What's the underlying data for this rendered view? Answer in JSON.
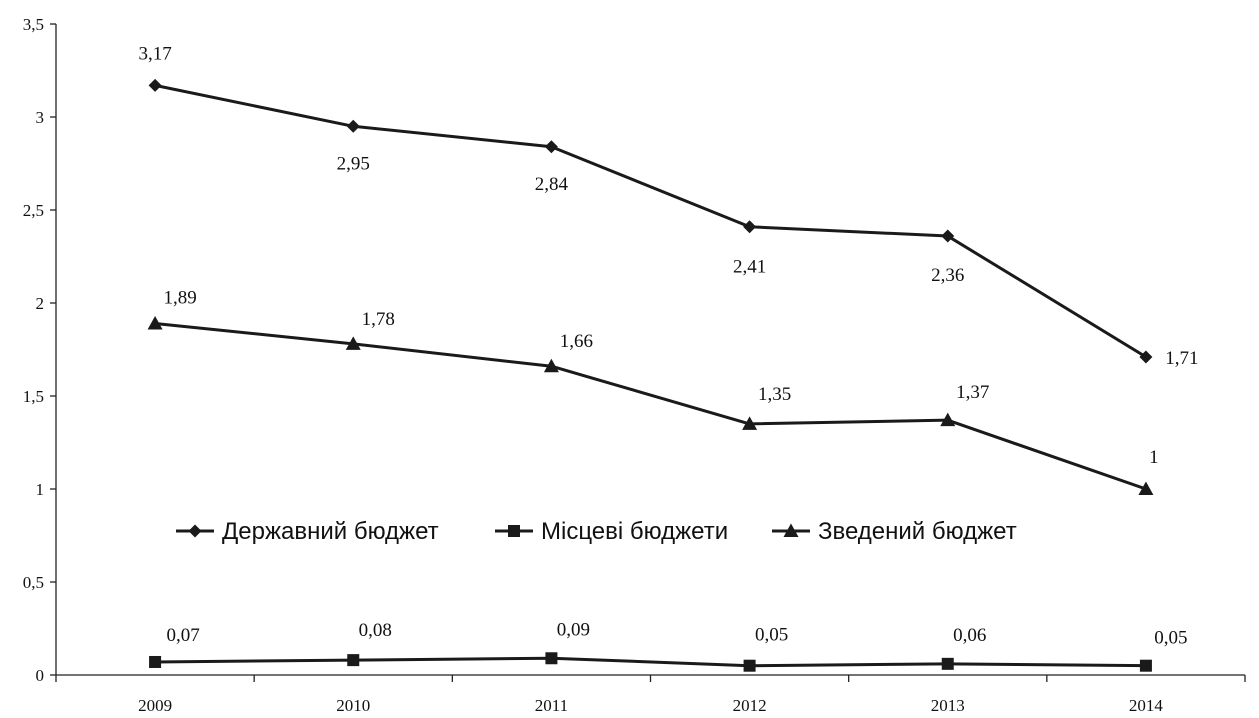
{
  "chart_data": {
    "type": "line",
    "categories": [
      "2009",
      "2010",
      "2011",
      "2012",
      "2013",
      "2014"
    ],
    "series": [
      {
        "name": "Державний бюджет",
        "marker": "diamond",
        "values": [
          3.17,
          2.95,
          2.84,
          2.41,
          2.36,
          1.71
        ],
        "labels": [
          "3,17",
          "2,95",
          "2,84",
          "2,41",
          "2,36",
          "1,71"
        ]
      },
      {
        "name": "Місцеві бюджети",
        "marker": "square",
        "values": [
          0.07,
          0.08,
          0.09,
          0.05,
          0.06,
          0.05
        ],
        "labels": [
          "0,07",
          "0,08",
          "0,09",
          "0,05",
          "0,06",
          "0,05"
        ]
      },
      {
        "name": "Зведений бюджет",
        "marker": "triangle",
        "values": [
          1.89,
          1.78,
          1.66,
          1.35,
          1.37,
          1.0
        ],
        "labels": [
          "1,89",
          "1,78",
          "1,66",
          "1,35",
          "1,37",
          "1"
        ]
      }
    ],
    "y_ticks": [
      0,
      0.5,
      1,
      1.5,
      2,
      2.5,
      3,
      3.5
    ],
    "y_tick_labels": [
      "0",
      "0,5",
      "1",
      "1,5",
      "2",
      "2,5",
      "3",
      "3,5"
    ],
    "ylim": [
      0,
      3.5
    ],
    "grid": false,
    "legend_position": "center"
  }
}
